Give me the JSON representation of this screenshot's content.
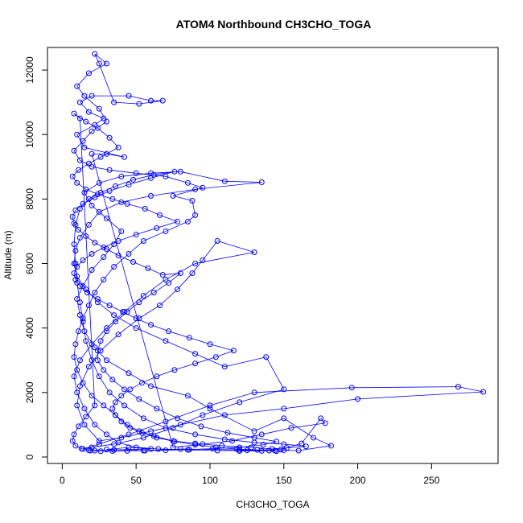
{
  "chart_data": {
    "type": "scatter",
    "title": "ATOM4 Northbound CH3CHO_TOGA",
    "xlabel": "CH3CHO_TOGA",
    "ylabel": "Altitude (m)",
    "xlim": [
      -10,
      295
    ],
    "ylim": [
      -200,
      12700
    ],
    "xticks": [
      0,
      50,
      100,
      150,
      200,
      250
    ],
    "yticks": [
      0,
      2000,
      4000,
      6000,
      8000,
      10000,
      12000
    ],
    "grid": false,
    "legend": "none",
    "connected": true,
    "marker": "open-circle",
    "series_color": "#0000ff",
    "points": [
      [
        22,
        200
      ],
      [
        18,
        210
      ],
      [
        35,
        220
      ],
      [
        60,
        250
      ],
      [
        45,
        300
      ],
      [
        30,
        230
      ],
      [
        55,
        200
      ],
      [
        80,
        250
      ],
      [
        120,
        220
      ],
      [
        140,
        200
      ],
      [
        145,
        180
      ],
      [
        150,
        210
      ],
      [
        160,
        200
      ],
      [
        182,
        350
      ],
      [
        170,
        600
      ],
      [
        150,
        1200
      ],
      [
        130,
        800
      ],
      [
        100,
        1500
      ],
      [
        85,
        1900
      ],
      [
        60,
        2200
      ],
      [
        45,
        2600
      ],
      [
        30,
        3000
      ],
      [
        22,
        3400
      ],
      [
        15,
        3900
      ],
      [
        12,
        4400
      ],
      [
        10,
        4900
      ],
      [
        14,
        5300
      ],
      [
        20,
        5800
      ],
      [
        28,
        6200
      ],
      [
        35,
        6600
      ],
      [
        40,
        7000
      ],
      [
        30,
        7400
      ],
      [
        20,
        7800
      ],
      [
        15,
        8200
      ],
      [
        25,
        8500
      ],
      [
        40,
        8700
      ],
      [
        60,
        8800
      ],
      [
        80,
        8850
      ],
      [
        110,
        8550
      ],
      [
        135,
        8520
      ],
      [
        90,
        8300
      ],
      [
        60,
        8100
      ],
      [
        40,
        7900
      ],
      [
        25,
        7600
      ],
      [
        18,
        7200
      ],
      [
        12,
        6800
      ],
      [
        9,
        6400
      ],
      [
        8,
        6000
      ],
      [
        10,
        5600
      ],
      [
        16,
        5200
      ],
      [
        24,
        4800
      ],
      [
        35,
        4400
      ],
      [
        50,
        4000
      ],
      [
        70,
        3600
      ],
      [
        90,
        3200
      ],
      [
        110,
        2800
      ],
      [
        138,
        3100
      ],
      [
        150,
        2100
      ],
      [
        120,
        1700
      ],
      [
        95,
        1300
      ],
      [
        75,
        900
      ],
      [
        55,
        600
      ],
      [
        35,
        400
      ],
      [
        20,
        300
      ],
      [
        14,
        250
      ],
      [
        25,
        400
      ],
      [
        45,
        700
      ],
      [
        70,
        1100
      ],
      [
        100,
        1600
      ],
      [
        130,
        2000
      ],
      [
        196,
        2150
      ],
      [
        268,
        2180
      ],
      [
        285,
        2020
      ],
      [
        200,
        1800
      ],
      [
        150,
        1500
      ],
      [
        110,
        1300
      ],
      [
        80,
        1000
      ],
      [
        60,
        800
      ],
      [
        40,
        600
      ],
      [
        25,
        500
      ],
      [
        15,
        1000
      ],
      [
        10,
        1600
      ],
      [
        12,
        2200
      ],
      [
        18,
        2800
      ],
      [
        26,
        3300
      ],
      [
        38,
        3800
      ],
      [
        52,
        4300
      ],
      [
        66,
        4700
      ],
      [
        78,
        5200
      ],
      [
        88,
        5700
      ],
      [
        95,
        6100
      ],
      [
        105,
        6700
      ],
      [
        130,
        6350
      ],
      [
        90,
        6000
      ],
      [
        70,
        5500
      ],
      [
        55,
        5000
      ],
      [
        42,
        4500
      ],
      [
        30,
        4000
      ],
      [
        20,
        3500
      ],
      [
        12,
        3000
      ],
      [
        8,
        2500
      ],
      [
        10,
        2000
      ],
      [
        15,
        1500
      ],
      [
        22,
        1000
      ],
      [
        30,
        700
      ],
      [
        38,
        450
      ],
      [
        50,
        300
      ],
      [
        65,
        250
      ],
      [
        85,
        220
      ],
      [
        105,
        200
      ],
      [
        125,
        210
      ],
      [
        148,
        230
      ],
      [
        162,
        420
      ],
      [
        175,
        1200
      ],
      [
        178,
        1050
      ],
      [
        155,
        900
      ],
      [
        135,
        700
      ],
      [
        115,
        500
      ],
      [
        95,
        400
      ],
      [
        75,
        300
      ],
      [
        20,
        9400
      ],
      [
        30,
        9400
      ],
      [
        42,
        9300
      ],
      [
        15,
        9600
      ],
      [
        10,
        10000
      ],
      [
        22,
        10300
      ],
      [
        28,
        10500
      ],
      [
        18,
        10700
      ],
      [
        12,
        11000
      ],
      [
        20,
        11200
      ],
      [
        45,
        11200
      ],
      [
        60,
        11050
      ],
      [
        68,
        11050
      ],
      [
        52,
        10950
      ],
      [
        35,
        11000
      ],
      [
        25,
        12200
      ],
      [
        22,
        12500
      ],
      [
        30,
        12200
      ],
      [
        18,
        11900
      ],
      [
        10,
        11500
      ],
      [
        15,
        11200
      ],
      [
        25,
        10800
      ],
      [
        30,
        10400
      ],
      [
        20,
        10100
      ],
      [
        14,
        9800
      ],
      [
        8,
        9500
      ],
      [
        12,
        9200
      ],
      [
        20,
        9000
      ],
      [
        32,
        8900
      ],
      [
        50,
        8800
      ],
      [
        70,
        8700
      ],
      [
        85,
        8500
      ],
      [
        95,
        8350
      ],
      [
        75,
        8100
      ],
      [
        88,
        7950
      ],
      [
        90,
        7500
      ],
      [
        85,
        7300
      ],
      [
        70,
        7000
      ],
      [
        55,
        6700
      ],
      [
        45,
        6300
      ],
      [
        35,
        5900
      ],
      [
        28,
        5500
      ],
      [
        22,
        5100
      ],
      [
        18,
        4700
      ],
      [
        14,
        4300
      ],
      [
        11,
        3900
      ],
      [
        9,
        3500
      ],
      [
        8,
        3100
      ],
      [
        10,
        2700
      ],
      [
        14,
        2300
      ],
      [
        20,
        1900
      ],
      [
        28,
        1600
      ],
      [
        36,
        1300
      ],
      [
        44,
        1000
      ],
      [
        52,
        800
      ],
      [
        62,
        650
      ],
      [
        75,
        500
      ],
      [
        90,
        420
      ],
      [
        108,
        350
      ],
      [
        128,
        300
      ],
      [
        142,
        250
      ],
      [
        152,
        280
      ],
      [
        165,
        330
      ],
      [
        150,
        400
      ],
      [
        130,
        450
      ],
      [
        110,
        550
      ],
      [
        90,
        700
      ],
      [
        70,
        900
      ],
      [
        55,
        1200
      ],
      [
        42,
        1600
      ],
      [
        32,
        2000
      ],
      [
        25,
        2500
      ],
      [
        20,
        3000
      ],
      [
        16,
        3600
      ],
      [
        14,
        4200
      ],
      [
        12,
        4800
      ],
      [
        10,
        5400
      ],
      [
        9,
        6000
      ],
      [
        8,
        6600
      ],
      [
        9,
        7200
      ],
      [
        12,
        7700
      ],
      [
        18,
        8000
      ],
      [
        26,
        8200
      ],
      [
        36,
        8400
      ],
      [
        48,
        8600
      ],
      [
        62,
        8750
      ],
      [
        76,
        8850
      ],
      [
        60,
        8650
      ],
      [
        45,
        8450
      ],
      [
        32,
        8250
      ],
      [
        22,
        8050
      ],
      [
        14,
        7850
      ],
      [
        9,
        7650
      ],
      [
        7,
        7450
      ],
      [
        8,
        7250
      ],
      [
        11,
        7050
      ],
      [
        16,
        6850
      ],
      [
        22,
        6650
      ],
      [
        30,
        6450
      ],
      [
        38,
        6250
      ],
      [
        48,
        6050
      ],
      [
        58,
        5850
      ],
      [
        68,
        5650
      ],
      [
        80,
        5700
      ],
      [
        72,
        5400
      ],
      [
        62,
        5100
      ],
      [
        52,
        4800
      ],
      [
        44,
        4500
      ],
      [
        36,
        4200
      ],
      [
        30,
        3900
      ],
      [
        26,
        3600
      ],
      [
        24,
        3300
      ],
      [
        24,
        3000
      ],
      [
        28,
        2700
      ],
      [
        34,
        2400
      ],
      [
        42,
        2100
      ],
      [
        52,
        1800
      ],
      [
        64,
        1500
      ],
      [
        78,
        1200
      ],
      [
        94,
        950
      ],
      [
        112,
        750
      ],
      [
        130,
        600
      ],
      [
        145,
        480
      ],
      [
        136,
        380
      ],
      [
        120,
        300
      ],
      [
        102,
        260
      ],
      [
        86,
        230
      ],
      [
        70,
        210
      ],
      [
        56,
        200
      ],
      [
        44,
        190
      ],
      [
        34,
        185
      ],
      [
        26,
        180
      ],
      [
        19,
        200
      ],
      [
        13,
        260
      ],
      [
        9,
        350
      ],
      [
        7,
        500
      ],
      [
        8,
        700
      ],
      [
        11,
        950
      ],
      [
        16,
        1250
      ],
      [
        22,
        1600
      ],
      [
        12,
        10500
      ],
      [
        8,
        10650
      ],
      [
        16,
        10400
      ],
      [
        24,
        10200
      ],
      [
        32,
        9900
      ],
      [
        38,
        9600
      ],
      [
        26,
        9300
      ],
      [
        18,
        9100
      ],
      [
        11,
        8900
      ],
      [
        7,
        8700
      ],
      [
        10,
        8500
      ],
      [
        16,
        8300
      ],
      [
        24,
        8150
      ],
      [
        34,
        8000
      ],
      [
        44,
        7850
      ],
      [
        56,
        7700
      ],
      [
        66,
        7500
      ],
      [
        78,
        7300
      ],
      [
        64,
        7100
      ],
      [
        50,
        6900
      ],
      [
        38,
        6700
      ],
      [
        28,
        6500
      ],
      [
        20,
        6300
      ],
      [
        14,
        6100
      ],
      [
        10,
        5900
      ],
      [
        8,
        5700
      ],
      [
        9,
        5500
      ],
      [
        12,
        5300
      ],
      [
        17,
        5100
      ],
      [
        24,
        4900
      ],
      [
        32,
        4700
      ],
      [
        41,
        4500
      ],
      [
        50,
        4300
      ],
      [
        60,
        4100
      ],
      [
        72,
        3900
      ],
      [
        86,
        3700
      ],
      [
        100,
        3500
      ],
      [
        116,
        3300
      ],
      [
        104,
        3100
      ],
      [
        90,
        2900
      ],
      [
        76,
        2700
      ],
      [
        64,
        2500
      ],
      [
        54,
        2300
      ],
      [
        46,
        2100
      ],
      [
        40,
        1900
      ],
      [
        36,
        1700
      ],
      [
        34,
        1500
      ],
      [
        36,
        1300
      ],
      [
        40,
        1100
      ],
      [
        46,
        900
      ],
      [
        54,
        750
      ],
      [
        64,
        600
      ],
      [
        76,
        480
      ],
      [
        90,
        380
      ],
      [
        104,
        300
      ],
      [
        118,
        250
      ],
      [
        132,
        220
      ],
      [
        144,
        200
      ],
      [
        135,
        190
      ],
      [
        120,
        185
      ]
    ]
  }
}
